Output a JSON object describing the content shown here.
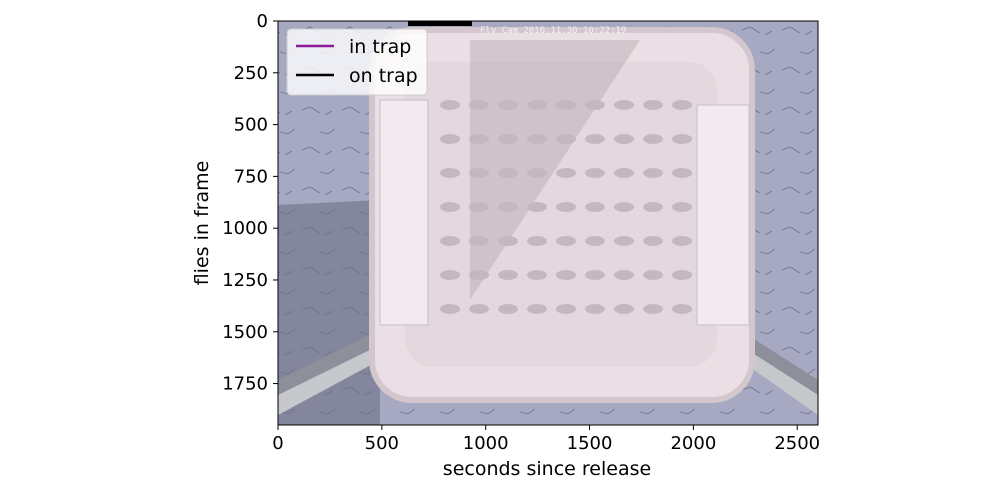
{
  "chart_data": {
    "type": "line",
    "title": "",
    "xlabel": "seconds since release",
    "ylabel": "flies in frame",
    "xlim": [
      0,
      2600
    ],
    "ylim": [
      1950,
      0
    ],
    "y_inverted": true,
    "xticks": [
      0,
      500,
      1000,
      1500,
      2000,
      2500
    ],
    "yticks": [
      0,
      250,
      500,
      750,
      1000,
      1250,
      1500,
      1750
    ],
    "legend": {
      "placement": "top-left",
      "entries": [
        {
          "name": "in trap",
          "color": "#8b1a9a"
        },
        {
          "name": "on trap",
          "color": "#000000"
        }
      ]
    },
    "series": [
      {
        "name": "in trap",
        "color": "#8b1a9a",
        "x": [],
        "y": []
      },
      {
        "name": "on trap",
        "color": "#000000",
        "x": [],
        "y": []
      }
    ],
    "background_image": {
      "description": "overhead camera photo of a white fly trap on a grey concrete surface",
      "timestamp_stamp": "Fly Cam  2016.11.30  10:22:19"
    }
  }
}
